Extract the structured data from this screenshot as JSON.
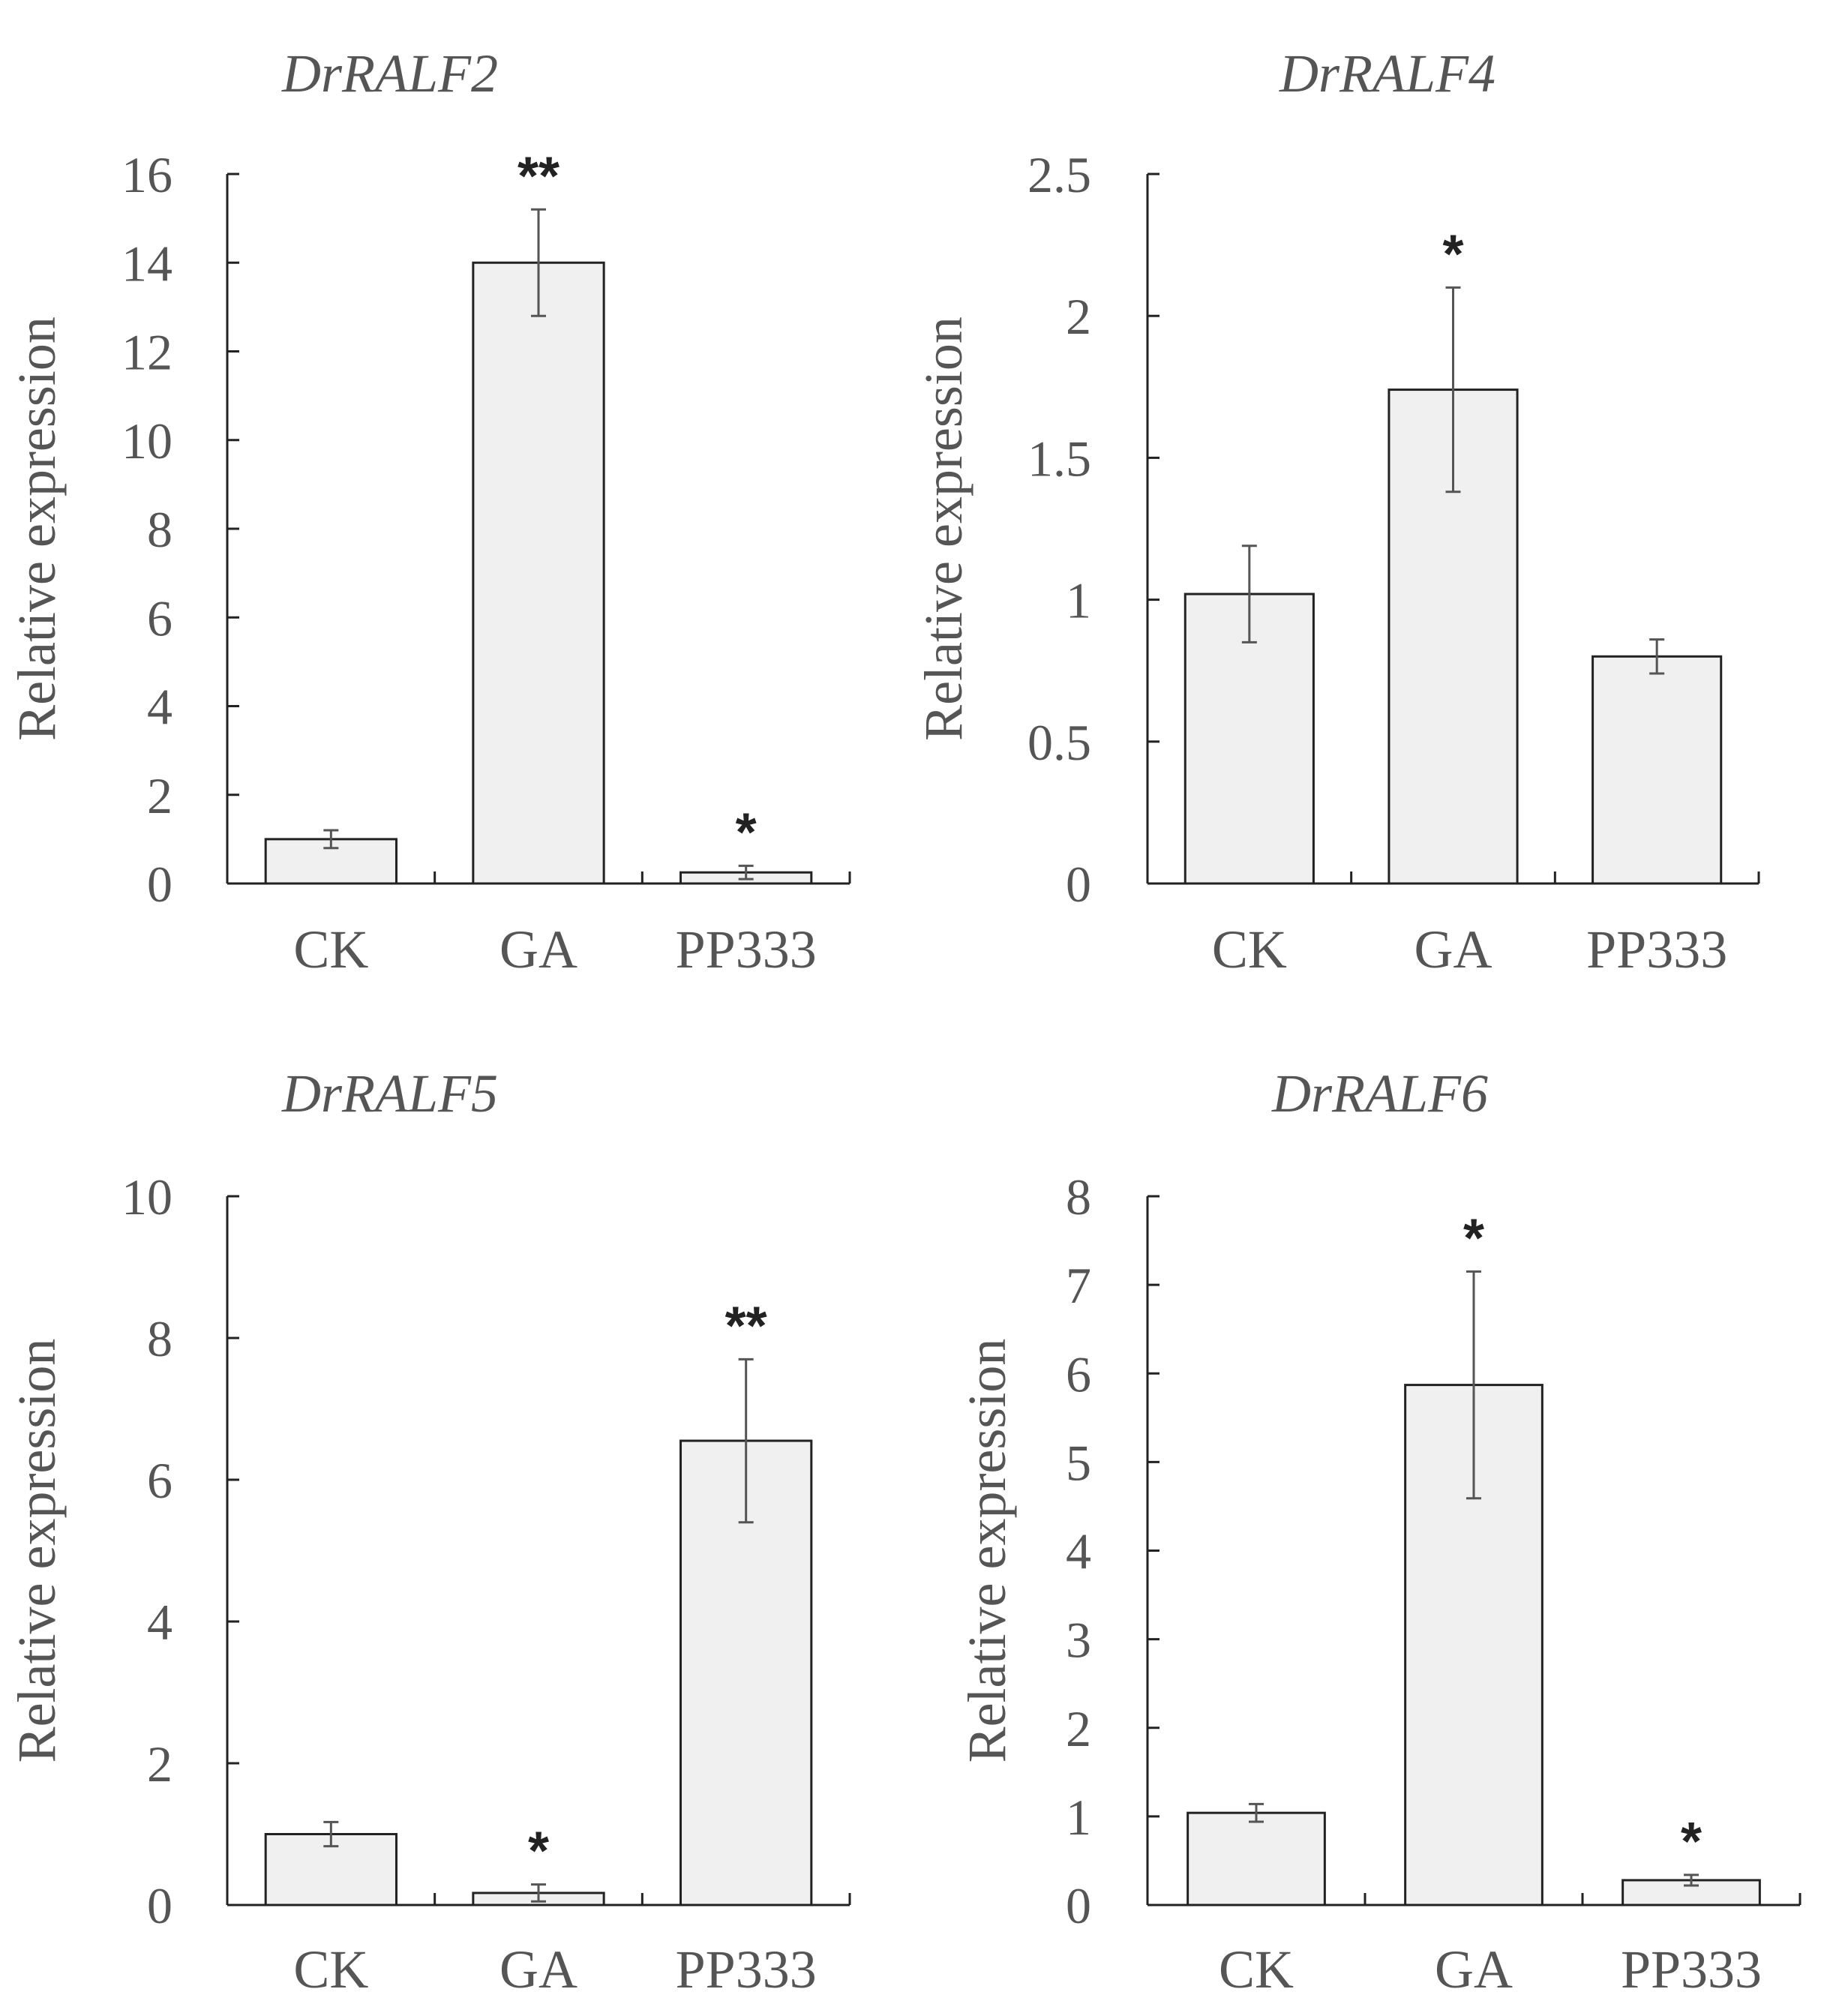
{
  "chart_data": [
    {
      "type": "bar",
      "title": "DrRALF2",
      "ylabel": "Relative expression",
      "categories": [
        "CK",
        "GA",
        "PP333"
      ],
      "values": [
        1.0,
        14.0,
        0.25
      ],
      "errors": [
        0.2,
        1.2,
        0.15
      ],
      "significance": [
        "",
        "**",
        "*"
      ],
      "ylim": [
        0,
        16
      ],
      "yticks": [
        0,
        2,
        4,
        6,
        8,
        10,
        12,
        14,
        16
      ],
      "ytick_labels": [
        "0",
        "2",
        "4",
        "6",
        "8",
        "10",
        "12",
        "14",
        "16"
      ]
    },
    {
      "type": "bar",
      "title": "DrRALF4",
      "ylabel": "Relative expression",
      "categories": [
        "CK",
        "GA",
        "PP333"
      ],
      "values": [
        1.02,
        1.74,
        0.8
      ],
      "errors": [
        0.17,
        0.36,
        0.06
      ],
      "significance": [
        "",
        "*",
        ""
      ],
      "ylim": [
        0,
        2.5
      ],
      "yticks": [
        0,
        0.5,
        1,
        1.5,
        2,
        2.5
      ],
      "ytick_labels": [
        "0",
        "0.5",
        "1",
        "1.5",
        "2",
        "2.5"
      ]
    },
    {
      "type": "bar",
      "title": "DrRALF5",
      "ylabel": "Relative expression",
      "categories": [
        "CK",
        "GA",
        "PP333"
      ],
      "values": [
        1.0,
        0.17,
        6.55
      ],
      "errors": [
        0.17,
        0.12,
        1.15
      ],
      "significance": [
        "",
        "*",
        "**"
      ],
      "ylim": [
        0,
        10
      ],
      "yticks": [
        0,
        2,
        4,
        6,
        8,
        10
      ],
      "ytick_labels": [
        "0",
        "2",
        "4",
        "6",
        "8",
        "10"
      ]
    },
    {
      "type": "bar",
      "title": "DrRALF6",
      "ylabel": "Relative expression",
      "categories": [
        "CK",
        "GA",
        "PP333"
      ],
      "values": [
        1.04,
        5.87,
        0.28
      ],
      "errors": [
        0.1,
        1.28,
        0.06
      ],
      "significance": [
        "",
        "*",
        "*"
      ],
      "ylim": [
        0,
        8
      ],
      "yticks": [
        0,
        1,
        2,
        3,
        4,
        5,
        6,
        7,
        8
      ],
      "ytick_labels": [
        "0",
        "1",
        "2",
        "3",
        "4",
        "5",
        "6",
        "7",
        "8"
      ]
    }
  ]
}
